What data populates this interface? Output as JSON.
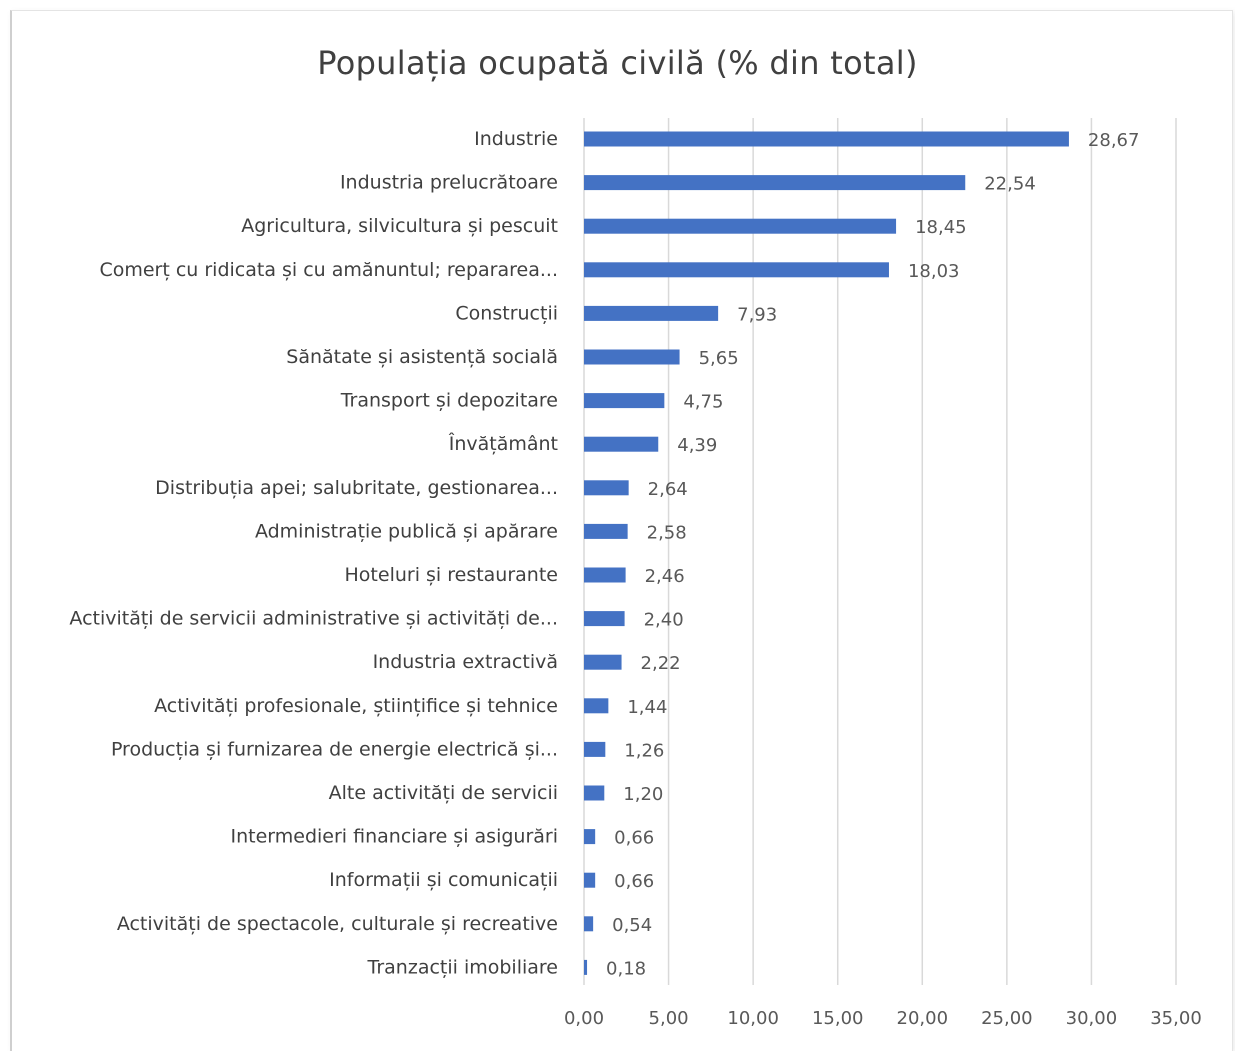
{
  "chart_data": {
    "type": "bar",
    "orientation": "horizontal",
    "title": "Populația ocupată civilă (% din total)",
    "categories": [
      "Industrie",
      "Industria prelucrătoare",
      "Agricultura, silvicultura și pescuit",
      "Comerț cu ridicata și cu amănuntul; repararea...",
      "Construcții",
      "Sănătate și asistență socială",
      "Transport și depozitare",
      "Învățământ",
      "Distribuția apei; salubritate, gestionarea...",
      "Administrație publică și apărare",
      "Hoteluri și restaurante",
      "Activități de servicii administrative și activități de...",
      "Industria extractivă",
      "Activități profesionale, științifice și tehnice",
      "Producția și furnizarea de energie electrică și...",
      "Alte activități de servicii",
      "Intermedieri financiare și asigurări",
      "Informații și comunicații",
      "Activități de spectacole, culturale și recreative",
      "Tranzacții imobiliare"
    ],
    "values": [
      28.67,
      22.54,
      18.45,
      18.03,
      7.93,
      5.65,
      4.75,
      4.39,
      2.64,
      2.58,
      2.46,
      2.4,
      2.22,
      1.44,
      1.26,
      1.2,
      0.66,
      0.66,
      0.54,
      0.18
    ],
    "value_labels": [
      "28,67",
      "22,54",
      "18,45",
      "18,03",
      "7,93",
      "5,65",
      "4,75",
      "4,39",
      "2,64",
      "2,58",
      "2,46",
      "2,40",
      "2,22",
      "1,44",
      "1,26",
      "1,20",
      "0,66",
      "0,66",
      "0,54",
      "0,18"
    ],
    "xlim": [
      0,
      35
    ],
    "x_ticks": [
      0,
      5,
      10,
      15,
      20,
      25,
      30,
      35
    ],
    "x_tick_labels": [
      "0,00",
      "5,00",
      "10,00",
      "15,00",
      "20,00",
      "25,00",
      "30,00",
      "35,00"
    ],
    "grid": "vertical",
    "legend": "none",
    "colors": {
      "bar": "#4472C4",
      "grid": "#d9d9d9",
      "text": "#404040",
      "value_text": "#595959"
    }
  }
}
